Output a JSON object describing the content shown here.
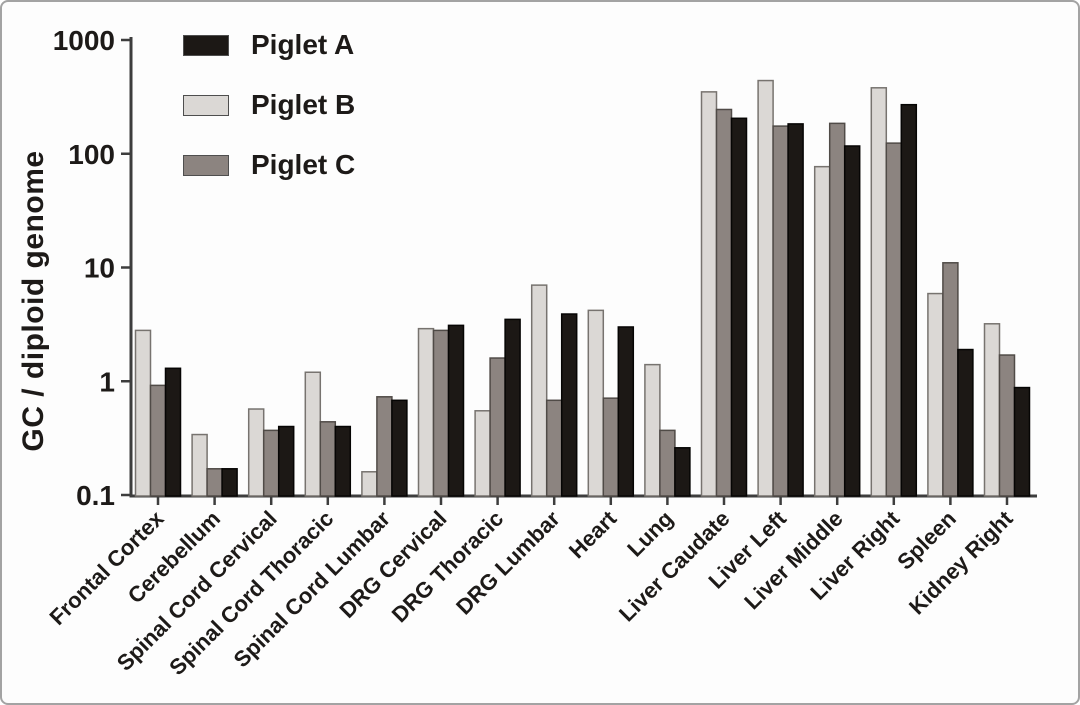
{
  "figure": {
    "background_color": "#fdfdfd",
    "border_color": "#a3a3a3",
    "axis_color": "#3d3d3d",
    "text_color": "#1d1a18"
  },
  "chart_data": {
    "type": "bar",
    "title": "",
    "xlabel": "",
    "ylabel": "GC / diploid genome",
    "y_scale": "log10",
    "ylim": [
      0.1,
      1000
    ],
    "yticks": [
      1000,
      100,
      10,
      1,
      0.1
    ],
    "grid": false,
    "legend_position": "top-left-inside",
    "categories": [
      "Frontal Cortex",
      "Cerebellum",
      "Spinal Cord Cervical",
      "Spinal Cord Thoracic",
      "Spinal Cord Lumbar",
      "DRG Cervical",
      "DRG Thoracic",
      "DRG Lumbar",
      "Heart",
      "Lung",
      "Liver Caudate",
      "Liver Left",
      "Liver Middle",
      "Liver Right",
      "Spleen",
      "Kidney Right"
    ],
    "series": [
      {
        "name": "Piglet A",
        "color": "#1c1815",
        "border_color": "#060504",
        "values": [
          1.3,
          0.17,
          0.4,
          0.4,
          0.68,
          3.1,
          3.5,
          3.9,
          3.0,
          0.26,
          205,
          183,
          117,
          270,
          1.9,
          0.88
        ]
      },
      {
        "name": "Piglet B",
        "color": "#dbd8d5",
        "border_color": "#77736f",
        "values": [
          2.8,
          0.34,
          0.57,
          1.2,
          0.16,
          2.9,
          0.55,
          7.0,
          4.2,
          1.4,
          350,
          440,
          77,
          380,
          5.9,
          3.2
        ]
      },
      {
        "name": "Piglet C",
        "color": "#8c8480",
        "border_color": "#504b47",
        "values": [
          0.92,
          0.17,
          0.37,
          0.44,
          0.73,
          2.8,
          1.6,
          0.68,
          0.71,
          0.37,
          245,
          175,
          185,
          124,
          11,
          1.7
        ]
      }
    ],
    "bar_plot_order": [
      "Piglet B",
      "Piglet C",
      "Piglet A"
    ]
  }
}
